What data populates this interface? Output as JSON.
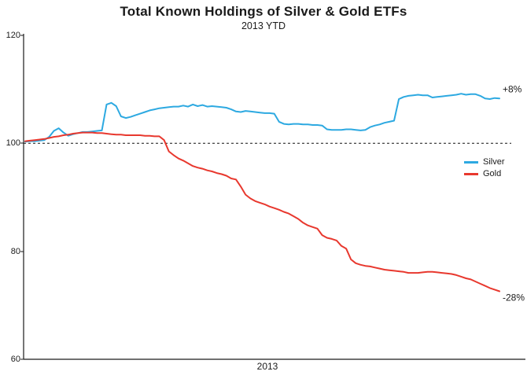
{
  "title": "Total Known Holdings of Silver & Gold ETFs",
  "subtitle": "2013 YTD",
  "chart_data": {
    "type": "line",
    "title": "Total Known Holdings of Silver & Gold ETFs",
    "subtitle": "2013 YTD",
    "xlabel": "2013",
    "ylabel": "",
    "ylim": [
      60,
      120
    ],
    "yticks": [
      120,
      100,
      80,
      60
    ],
    "baseline": 100,
    "grid": false,
    "legend_position": "right-middle",
    "annotations": [
      {
        "text": "+8%",
        "series": "Silver"
      },
      {
        "text": "-28%",
        "series": "Gold"
      }
    ],
    "series": [
      {
        "name": "Silver",
        "color": "#2da9e1",
        "end_label": "+8%",
        "values": [
          100.3,
          100.4,
          100.4,
          100.5,
          100.6,
          101.2,
          102.3,
          102.8,
          102.0,
          101.4,
          101.7,
          101.9,
          102.1,
          102.1,
          102.2,
          102.3,
          102.4,
          107.2,
          107.5,
          106.9,
          105.0,
          104.7,
          104.9,
          105.2,
          105.5,
          105.8,
          106.1,
          106.3,
          106.5,
          106.6,
          106.7,
          106.8,
          106.8,
          107.0,
          106.8,
          107.2,
          106.9,
          107.1,
          106.8,
          106.9,
          106.8,
          106.7,
          106.6,
          106.3,
          105.9,
          105.8,
          106.0,
          105.9,
          105.8,
          105.7,
          105.6,
          105.6,
          105.5,
          104.0,
          103.6,
          103.5,
          103.6,
          103.6,
          103.5,
          103.5,
          103.4,
          103.4,
          103.3,
          102.6,
          102.5,
          102.5,
          102.5,
          102.6,
          102.6,
          102.5,
          102.4,
          102.5,
          103.0,
          103.3,
          103.5,
          103.8,
          104.0,
          104.2,
          108.2,
          108.6,
          108.8,
          108.9,
          109.0,
          108.9,
          108.9,
          108.5,
          108.6,
          108.7,
          108.8,
          108.9,
          109.0,
          109.2,
          109.0,
          109.1,
          109.1,
          108.8,
          108.3,
          108.2,
          108.4,
          108.3
        ]
      },
      {
        "name": "Gold",
        "color": "#e8382e",
        "end_label": "-28%",
        "values": [
          100.4,
          100.5,
          100.6,
          100.7,
          100.8,
          101.0,
          101.2,
          101.3,
          101.5,
          101.6,
          101.8,
          101.9,
          102.0,
          102.0,
          102.0,
          101.9,
          101.9,
          101.8,
          101.7,
          101.6,
          101.6,
          101.5,
          101.5,
          101.5,
          101.5,
          101.4,
          101.4,
          101.3,
          101.3,
          100.6,
          98.5,
          97.8,
          97.2,
          96.8,
          96.3,
          95.8,
          95.5,
          95.3,
          95.0,
          94.8,
          94.5,
          94.3,
          94.0,
          93.5,
          93.3,
          92.0,
          90.5,
          89.8,
          89.3,
          89.0,
          88.7,
          88.3,
          88.0,
          87.7,
          87.3,
          87.0,
          86.5,
          86.0,
          85.3,
          84.8,
          84.5,
          84.2,
          83.0,
          82.5,
          82.3,
          82.0,
          81.0,
          80.5,
          78.5,
          77.8,
          77.5,
          77.3,
          77.2,
          77.0,
          76.8,
          76.6,
          76.5,
          76.4,
          76.3,
          76.2,
          76.0,
          76.0,
          76.0,
          76.1,
          76.2,
          76.2,
          76.1,
          76.0,
          75.9,
          75.8,
          75.6,
          75.3,
          75.0,
          74.8,
          74.4,
          74.0,
          73.6,
          73.2,
          72.9,
          72.6
        ]
      }
    ]
  }
}
